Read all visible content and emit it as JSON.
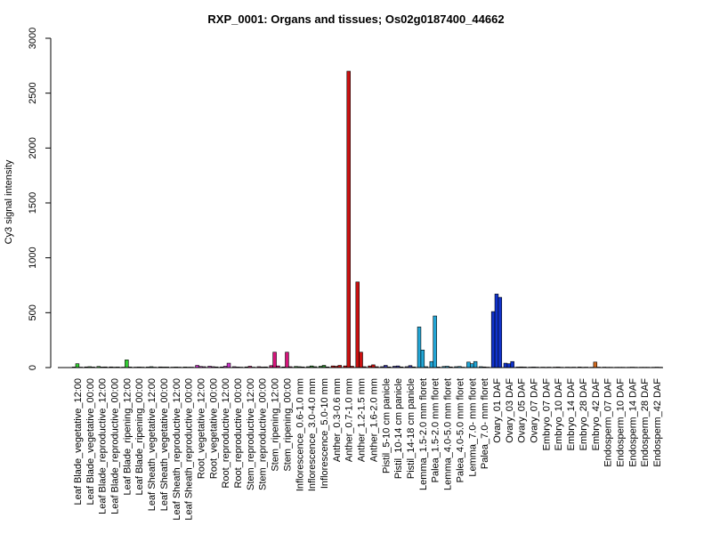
{
  "chart_data": {
    "type": "bar",
    "title": "RXP_0001: Organs and tissues; Os02g0187400_44662",
    "xlabel": "",
    "ylabel": "Cy3 signal intensity",
    "ylim": [
      0,
      3000
    ],
    "yticks": [
      0,
      500,
      1000,
      1500,
      2000,
      2500,
      3000
    ],
    "grid": false,
    "legend": "none",
    "categories": [
      "Leaf Blade_vegetative_12:00",
      "Leaf Blade_vegetative_00:00",
      "Leaf Blade_reproductive_12:00",
      "Leaf Blade_reproductive_00:00",
      "Leaf Blade_ripening_12:00",
      "Leaf Blade_ripening_00:00",
      "Leaf Sheath_vegetative_12:00",
      "Leaf Sheath_vegetative_00:00",
      "Leaf Sheath_reproductive_12:00",
      "Leaf Sheath_reproductive_00:00",
      "Root_vegetative_12:00",
      "Root_vegetative_00:00",
      "Root_reproductive_12:00",
      "Root_reproductive_00:00",
      "Stem_reproductive_12:00",
      "Stem_reproductive_00:00",
      "Stem_ripening_12:00",
      "Stem_ripening_00:00",
      "Inflorescence_0.6-1.0 mm",
      "Inflorescence_3.0-4.0 mm",
      "Inflorescence_5.0-10 mm",
      "Anther_0.3-0.6 mm",
      "Anther_0.7-1.0 mm",
      "Anther_1.2-1.5 mm",
      "Anther_1.6-2.0 mm",
      "Pistil_5-10 cm panicle",
      "Pistil_10-14 cm panicle",
      "Pistil_14-18 cm panicle",
      "Lemma_1.5-2.0 mm floret",
      "Palea_1.5-2.0 mm floret",
      "Lemma_4.0-5.0 mm floret",
      "Palea_4.0-5.0 mm floret",
      "Lemma_7.0- mm floret",
      "Palea_7.0- mm floret",
      "Ovary_01 DAF",
      "Ovary_03 DAF",
      "Ovary_05 DAF",
      "Ovary_07 DAF",
      "Embryo_07 DAF",
      "Embryo_10 DAF",
      "Embryo_14 DAF",
      "Embryo_28 DAF",
      "Embryo_42 DAF",
      "Endosperm_07 DAF",
      "Endosperm_10 DAF",
      "Endosperm_14 DAF",
      "Endosperm_28 DAF",
      "Endosperm_42 DAF"
    ],
    "values": [
      [
        5,
        35,
        4
      ],
      [
        6,
        8,
        5
      ],
      [
        10,
        5,
        6
      ],
      [
        6,
        4,
        5
      ],
      [
        4,
        70,
        5
      ],
      [
        4,
        5,
        4
      ],
      [
        5,
        8,
        4
      ],
      [
        6,
        5,
        5
      ],
      [
        4,
        5,
        4
      ],
      [
        5,
        4,
        4
      ],
      [
        20,
        10,
        8
      ],
      [
        12,
        8,
        6
      ],
      [
        6,
        12,
        40
      ],
      [
        8,
        5,
        4
      ],
      [
        6,
        12,
        4
      ],
      [
        8,
        5,
        6
      ],
      [
        18,
        140,
        15
      ],
      [
        6,
        140,
        8
      ],
      [
        10,
        8,
        6
      ],
      [
        8,
        15,
        8
      ],
      [
        12,
        20,
        6
      ],
      [
        15,
        12,
        20
      ],
      [
        15,
        2700,
        12
      ],
      [
        780,
        140,
        8
      ],
      [
        15,
        25,
        8
      ],
      [
        8,
        20,
        6
      ],
      [
        12,
        15,
        6
      ],
      [
        8,
        18,
        6
      ],
      [
        370,
        160,
        8
      ],
      [
        55,
        470,
        5
      ],
      [
        10,
        12,
        6
      ],
      [
        8,
        10,
        4
      ],
      [
        50,
        35,
        55
      ],
      [
        8,
        6,
        4
      ],
      [
        510,
        670,
        640
      ],
      [
        40,
        35,
        55
      ],
      [
        5,
        6,
        5
      ],
      [
        4,
        5,
        4
      ],
      [
        4,
        3,
        4
      ],
      [
        4,
        5,
        3
      ],
      [
        4,
        3,
        4
      ],
      [
        5,
        3,
        4
      ],
      [
        3,
        50,
        4
      ],
      [
        4,
        3,
        3
      ],
      [
        3,
        3,
        3
      ],
      [
        3,
        4,
        3
      ],
      [
        3,
        3,
        3
      ],
      [
        3,
        4,
        3
      ]
    ],
    "colors": [
      "#33cc33",
      "#33cc33",
      "#33cc33",
      "#33cc33",
      "#33cc33",
      "#33cc33",
      "#2e8b57",
      "#2e8b57",
      "#2e8b57",
      "#2e8b57",
      "#cc33cc",
      "#cc33cc",
      "#cc33cc",
      "#cc33cc",
      "#d4147a",
      "#d4147a",
      "#d4147a",
      "#d4147a",
      "#2e8b2e",
      "#2e8b2e",
      "#2e8b2e",
      "#cc1111",
      "#cc1111",
      "#cc1111",
      "#cc1111",
      "#3a3aaa",
      "#3a3aaa",
      "#3a3aaa",
      "#22a6d6",
      "#22a6d6",
      "#22a6d6",
      "#22a6d6",
      "#22a6d6",
      "#22a6d6",
      "#1133cc",
      "#1133cc",
      "#1133cc",
      "#1133cc",
      "#d2691e",
      "#d2691e",
      "#d2691e",
      "#d2691e",
      "#d2691e",
      "#8b4513",
      "#8b4513",
      "#8b4513",
      "#8b4513",
      "#8b4513"
    ]
  }
}
